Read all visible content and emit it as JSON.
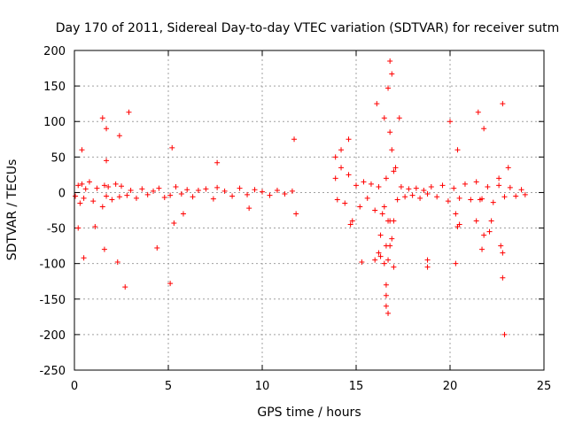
{
  "chart_data": {
    "type": "scatter",
    "title": "Day 170 of 2011, Sidereal Day-to-day VTEC variation (SDTVAR) for receiver sutm",
    "xlabel": "GPS time / hours",
    "ylabel": "SDTVAR / TECUs",
    "xlim": [
      0,
      25
    ],
    "ylim": [
      -250,
      200
    ],
    "xticks": [
      0,
      5,
      10,
      15,
      20,
      25
    ],
    "yticks": [
      -250,
      -200,
      -150,
      -100,
      -50,
      0,
      50,
      100,
      150,
      200
    ],
    "grid": true,
    "marker": "+",
    "color": "#ff0000",
    "series": [
      {
        "name": "SDTVAR",
        "x": [
          0.05,
          0.2,
          0.3,
          0.4,
          0.5,
          0.6,
          0.8,
          1.0,
          1.2,
          1.5,
          1.6,
          1.7,
          1.8,
          2.0,
          2.2,
          2.4,
          2.5,
          2.8,
          3.0,
          3.3,
          3.6,
          3.9,
          4.2,
          4.5,
          4.8,
          5.1,
          5.4,
          5.7,
          6.0,
          6.3,
          6.6,
          7.0,
          7.4,
          7.6,
          8.0,
          8.4,
          8.8,
          9.2,
          9.6,
          10.0,
          10.4,
          10.8,
          11.2,
          11.6,
          0.4,
          0.5,
          1.5,
          1.6,
          1.7,
          2.3,
          2.4,
          2.7,
          2.9,
          4.4,
          5.2,
          5.1,
          5.3,
          0.2,
          1.1,
          1.7,
          5.8,
          7.6,
          9.3,
          11.7,
          11.8,
          13.9,
          14.0,
          14.2,
          14.4,
          14.6,
          14.8,
          15.0,
          15.2,
          15.4,
          15.6,
          15.8,
          16.0,
          16.2,
          16.4,
          16.6,
          16.8,
          17.0,
          17.2,
          17.4,
          17.6,
          17.8,
          18.0,
          18.2,
          18.4,
          18.6,
          18.8,
          13.9,
          14.2,
          14.6,
          14.7,
          15.3,
          16.1,
          16.3,
          16.5,
          16.6,
          16.7,
          16.7,
          16.8,
          16.9,
          16.9,
          17.0,
          16.5,
          16.6,
          17.3,
          16.6,
          16.6,
          16.7,
          16.7,
          16.8,
          16.8,
          16.5,
          16.9,
          17.0,
          17.1,
          18.8,
          18.8,
          16.2,
          16.3,
          16.0,
          19.0,
          19.3,
          19.6,
          19.9,
          20.2,
          20.5,
          20.8,
          21.1,
          21.4,
          21.7,
          22.0,
          22.3,
          22.6,
          22.9,
          23.2,
          23.5,
          23.8,
          24.0,
          20.0,
          20.3,
          20.4,
          20.5,
          21.5,
          21.7,
          21.8,
          22.2,
          22.6,
          22.7,
          22.8,
          22.9,
          20.4,
          21.4,
          21.8,
          22.1,
          22.8,
          23.1,
          20.3,
          21.6,
          22.8
        ],
        "y": [
          -5,
          10,
          -15,
          12,
          -8,
          5,
          15,
          -12,
          6,
          -20,
          10,
          -5,
          8,
          -10,
          12,
          -6,
          9,
          -4,
          3,
          -8,
          5,
          -3,
          2,
          6,
          -7,
          -4,
          8,
          -2,
          4,
          -6,
          3,
          5,
          -9,
          7,
          2,
          -5,
          6,
          -3,
          4,
          1,
          -4,
          3,
          -2,
          2,
          60,
          -92,
          105,
          -80,
          90,
          -98,
          80,
          -133,
          113,
          -78,
          63,
          -128,
          -43,
          -50,
          -48,
          45,
          -30,
          42,
          -22,
          75,
          -30,
          20,
          -10,
          35,
          -15,
          25,
          -40,
          10,
          -20,
          15,
          -8,
          12,
          -25,
          8,
          -30,
          20,
          -40,
          30,
          -10,
          8,
          -6,
          5,
          -4,
          6,
          -8,
          3,
          -2,
          50,
          60,
          75,
          -45,
          -98,
          125,
          -60,
          105,
          -75,
          147,
          -95,
          185,
          -65,
          167,
          -105,
          -100,
          -145,
          105,
          -130,
          -160,
          -170,
          -40,
          -75,
          85,
          -20,
          60,
          -40,
          35,
          -95,
          -105,
          -85,
          -90,
          -95,
          8,
          -6,
          10,
          -12,
          6,
          -8,
          12,
          -10,
          15,
          -9,
          8,
          -14,
          10,
          -6,
          7,
          -5,
          4,
          -3,
          100,
          -100,
          60,
          -45,
          113,
          -80,
          90,
          -40,
          20,
          -75,
          125,
          -200,
          -48,
          -40,
          -60,
          -55,
          -85,
          35,
          -30,
          -10,
          -120
        ]
      }
    ]
  }
}
